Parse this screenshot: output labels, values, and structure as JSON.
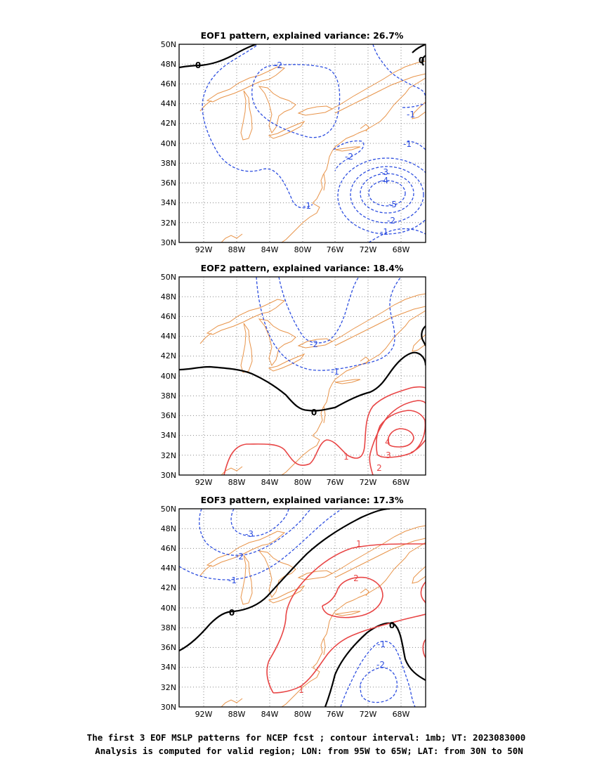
{
  "panels": [
    {
      "title": "EOF1 pattern, explained variance: 26.7%",
      "contour_labels": {
        "zero_a": "0",
        "zero_b": "0",
        "m2_a": "-2",
        "m1_a": "-1",
        "m1_b": "-1",
        "m1_c": "-1",
        "m2_b": "-2",
        "m3": "-3",
        "m4": "-4",
        "m5": "-5",
        "m2_c": "-2",
        "m1_d": "-1"
      }
    },
    {
      "title": "EOF2 pattern, explained variance: 18.4%",
      "contour_labels": {
        "m2": "-2",
        "m1": "-1",
        "zero": "0",
        "p1": "1",
        "p2": "2",
        "p3": "3",
        "p4": "4"
      }
    },
    {
      "title": "EOF3 pattern, explained variance: 17.3%",
      "contour_labels": {
        "m3": "-3",
        "m2_a": "-2",
        "m1_a": "-1",
        "zero_a": "0",
        "p1_a": "1",
        "p2": "2",
        "zero_b": "0",
        "m1_b": "-1",
        "m2_b": "-2",
        "p1_b": "1"
      }
    }
  ],
  "axes": {
    "lat_labels": [
      "50N",
      "48N",
      "46N",
      "44N",
      "42N",
      "40N",
      "38N",
      "36N",
      "34N",
      "32N",
      "30N"
    ],
    "lon_labels": [
      "92W",
      "88W",
      "84W",
      "80W",
      "76W",
      "72W",
      "68W"
    ]
  },
  "footer": {
    "line1": "The first 3 EOF MSLP patterns for NCEP fcst ; contour interval: 1mb; VT: 2023083000",
    "line2": "Analysis is computed for valid region; LON: from 95W to 65W; LAT: from 30N to 50N"
  },
  "colors": {
    "negative": "#2e4fe0",
    "positive": "#e84545",
    "zero": "#000000",
    "coast": "#e8944a"
  }
}
